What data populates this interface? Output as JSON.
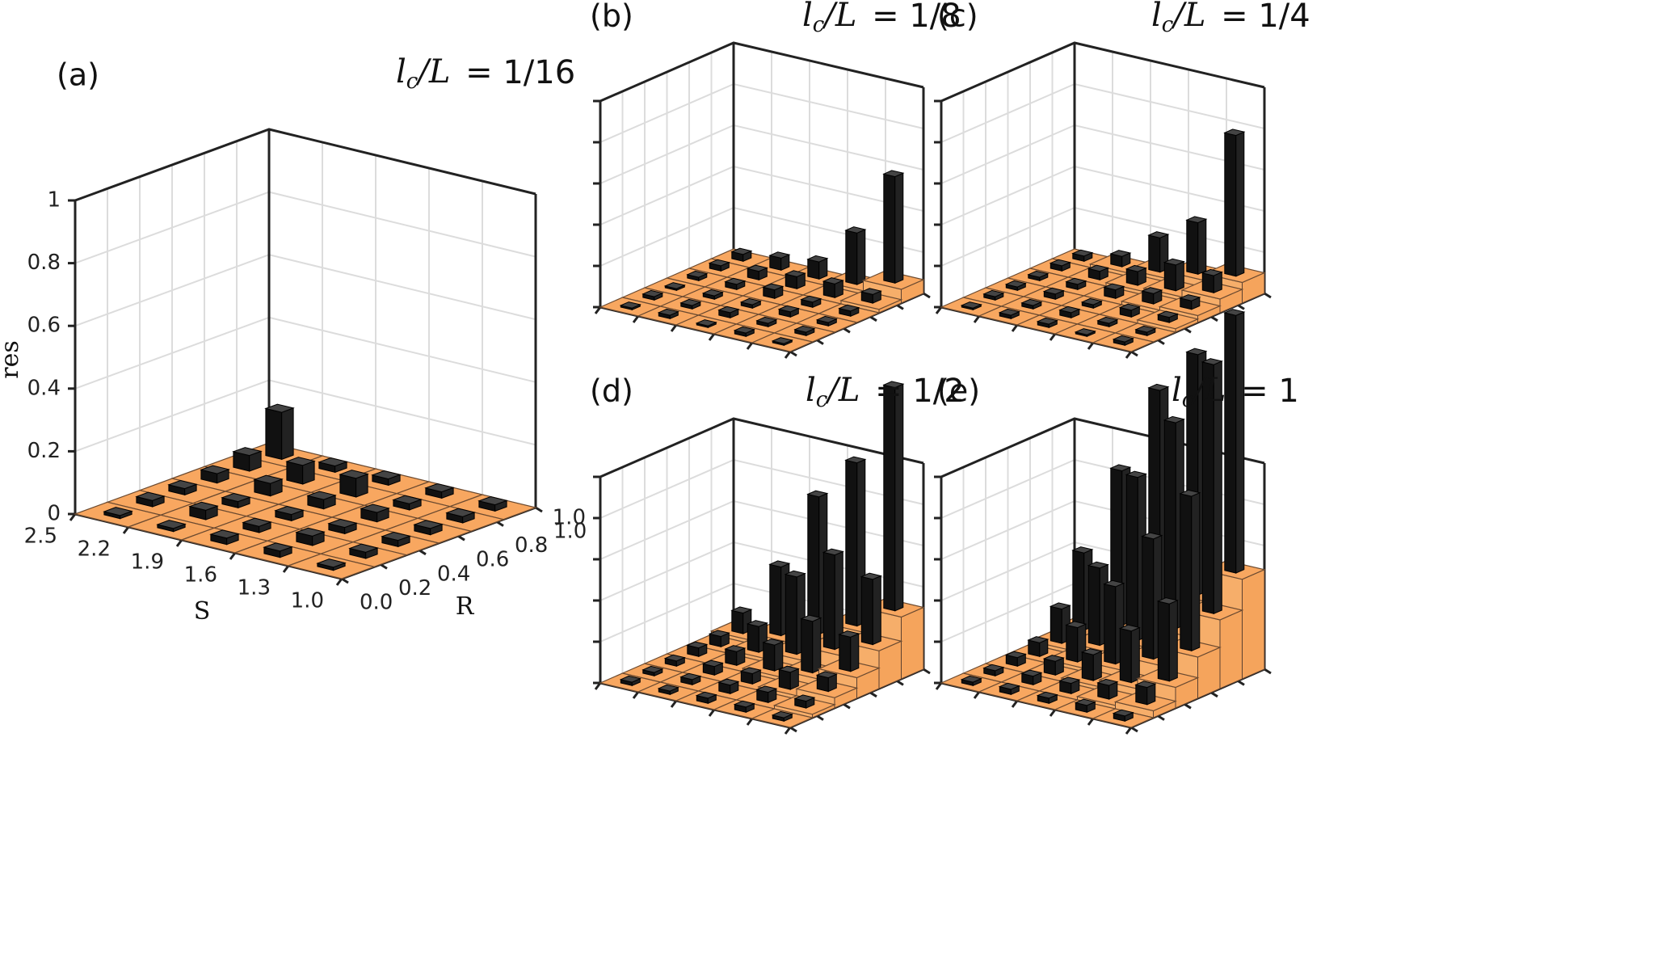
{
  "figure": {
    "ylabel": "res",
    "xlabel": "S",
    "rlabel": "R"
  },
  "chart_data": [
    {
      "panel": "(a)",
      "type": "bar3d",
      "title": "l_c/L = 1/16",
      "title_parts": {
        "lhs": "l",
        "sub": "c",
        "rhs": "/L",
        "eq": "= 1/16"
      },
      "ylabel": "res",
      "xlabel": "S",
      "rlabel": "R",
      "zlim": [
        0,
        1
      ],
      "z_ticks": [
        "0",
        "0.2",
        "0.4",
        "0.6",
        "0.8",
        "1"
      ],
      "s_ticks": [
        "2.5",
        "2.2",
        "1.9",
        "1.6",
        "1.3",
        "1.0"
      ],
      "r_ticks": [
        "0.0",
        "0.2",
        "0.4",
        "0.6",
        "0.8",
        "1.0"
      ],
      "S": [
        2.2,
        1.9,
        1.6,
        1.3,
        1.0
      ],
      "R": [
        0.0,
        0.2,
        0.4,
        0.6,
        0.8,
        1.0
      ],
      "floor": [
        [
          0,
          0,
          0,
          0,
          0,
          0
        ],
        [
          0,
          0,
          0,
          0,
          0,
          0
        ],
        [
          0,
          0,
          0,
          0,
          0,
          0
        ],
        [
          0,
          0,
          0,
          0,
          0,
          0
        ],
        [
          0,
          0,
          0,
          0,
          0,
          0
        ]
      ],
      "bars": [
        [
          0.01,
          0.02,
          0.02,
          0.03,
          0.05,
          0.15
        ],
        [
          0.01,
          0.03,
          0.02,
          0.04,
          0.06,
          0.02
        ],
        [
          0.02,
          0.02,
          0.02,
          0.03,
          0.06,
          0.02
        ],
        [
          0.02,
          0.03,
          0.02,
          0.03,
          0.02,
          0.02
        ],
        [
          0.01,
          0.02,
          0.02,
          0.02,
          0.02,
          0.02
        ]
      ]
    },
    {
      "panel": "(b)",
      "type": "bar3d",
      "title": "l_c/L = 1/8",
      "title_parts": {
        "lhs": "l",
        "sub": "c",
        "rhs": "/L",
        "eq": "= 1/8"
      },
      "zlim": [
        0,
        1.2
      ],
      "z_tick_count": 6,
      "s_tick_count": 6,
      "r_tick_count": 6,
      "floor": [
        [
          0,
          0,
          0,
          0,
          0,
          0
        ],
        [
          0,
          0,
          0,
          0,
          0,
          0
        ],
        [
          0,
          0,
          0,
          0,
          0,
          0
        ],
        [
          0,
          0,
          0,
          0,
          0,
          0.02
        ],
        [
          0,
          0,
          0,
          0,
          0.02,
          0.08
        ]
      ],
      "bars": [
        [
          0.01,
          0.02,
          0.01,
          0.02,
          0.03,
          0.04
        ],
        [
          0.02,
          0.02,
          0.02,
          0.03,
          0.05,
          0.07
        ],
        [
          0.01,
          0.03,
          0.02,
          0.05,
          0.07,
          0.1
        ],
        [
          0.02,
          0.02,
          0.03,
          0.03,
          0.08,
          0.3
        ],
        [
          0.01,
          0.02,
          0.02,
          0.03,
          0.05,
          0.62
        ]
      ]
    },
    {
      "panel": "(c)",
      "type": "bar3d",
      "title": "l_c/L = 1/4",
      "title_parts": {
        "lhs": "l",
        "sub": "c",
        "rhs": "/L",
        "eq": "= 1/4"
      },
      "zlim": [
        0,
        1.2
      ],
      "z_tick_count": 6,
      "s_tick_count": 6,
      "r_tick_count": 6,
      "floor": [
        [
          0,
          0,
          0,
          0,
          0,
          0
        ],
        [
          0,
          0,
          0,
          0,
          0,
          0.02
        ],
        [
          0,
          0,
          0,
          0,
          0.02,
          0.04
        ],
        [
          0,
          0,
          0,
          0.02,
          0.04,
          0.08
        ],
        [
          0,
          0,
          0.02,
          0.04,
          0.08,
          0.12
        ]
      ],
      "bars": [
        [
          0.01,
          0.02,
          0.02,
          0.02,
          0.03,
          0.03
        ],
        [
          0.02,
          0.02,
          0.03,
          0.03,
          0.05,
          0.06
        ],
        [
          0.02,
          0.03,
          0.02,
          0.05,
          0.08,
          0.2
        ],
        [
          0.01,
          0.02,
          0.04,
          0.06,
          0.15,
          0.3
        ],
        [
          0.02,
          0.02,
          0.03,
          0.05,
          0.1,
          0.82
        ]
      ]
    },
    {
      "panel": "(d)",
      "type": "bar3d",
      "title": "l_c/L = 1/2",
      "title_parts": {
        "lhs": "l",
        "sub": "c",
        "rhs": "/L",
        "eq": "= 1/2"
      },
      "zlim": [
        0,
        1.2
      ],
      "z_ticks": [
        "",
        "",
        "",
        "",
        "1.0",
        ""
      ],
      "s_tick_count": 6,
      "r_tick_count": 6,
      "floor": [
        [
          0,
          0,
          0,
          0,
          0,
          0.02
        ],
        [
          0,
          0,
          0,
          0,
          0.02,
          0.06
        ],
        [
          0,
          0,
          0,
          0.02,
          0.06,
          0.12
        ],
        [
          0,
          0,
          0.02,
          0.06,
          0.14,
          0.22
        ],
        [
          0,
          0.02,
          0.06,
          0.12,
          0.22,
          0.36
        ]
      ],
      "bars": [
        [
          0.02,
          0.02,
          0.03,
          0.05,
          0.06,
          0.12
        ],
        [
          0.02,
          0.03,
          0.05,
          0.08,
          0.15,
          0.4
        ],
        [
          0.03,
          0.05,
          0.06,
          0.15,
          0.45,
          0.8
        ],
        [
          0.03,
          0.06,
          0.1,
          0.3,
          0.55,
          0.95
        ],
        [
          0.02,
          0.04,
          0.08,
          0.2,
          0.38,
          1.3
        ]
      ]
    },
    {
      "panel": "(e)",
      "type": "bar3d",
      "title": "l_c/L = 1",
      "title_parts": {
        "lhs": "l",
        "sub": "c",
        "rhs": "/L",
        "eq": "= 1"
      },
      "zlim": [
        0,
        1.2
      ],
      "z_tick_count": 6,
      "s_tick_count": 6,
      "r_tick_count": 6,
      "floor": [
        [
          0,
          0,
          0,
          0,
          0.02,
          0.04
        ],
        [
          0,
          0,
          0,
          0.02,
          0.06,
          0.12
        ],
        [
          0,
          0,
          0.02,
          0.06,
          0.14,
          0.24
        ],
        [
          0,
          0.02,
          0.06,
          0.14,
          0.26,
          0.4
        ],
        [
          0,
          0.04,
          0.12,
          0.24,
          0.4,
          0.58
        ]
      ],
      "bars": [
        [
          0.02,
          0.03,
          0.05,
          0.08,
          0.2,
          0.45
        ],
        [
          0.03,
          0.05,
          0.08,
          0.2,
          0.45,
          0.9
        ],
        [
          0.03,
          0.06,
          0.15,
          0.45,
          0.95,
          1.3
        ],
        [
          0.04,
          0.08,
          0.3,
          0.7,
          1.2,
          1.4
        ],
        [
          0.03,
          0.1,
          0.45,
          0.9,
          1.45,
          1.5
        ]
      ]
    }
  ]
}
